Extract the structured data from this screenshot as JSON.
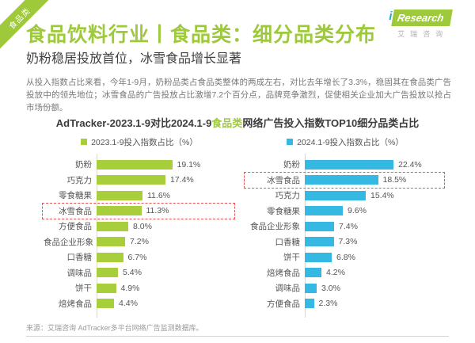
{
  "theme": {
    "brand_green": "#9dc93a",
    "bar_green": "#a8ce3b",
    "bar_blue": "#35b8e1",
    "highlight_red": "#e95454"
  },
  "ribbon": {
    "label": "食品类"
  },
  "header": {
    "title": "食品饮料行业丨食品类：细分品类分布",
    "subtitle": "奶粉稳居投放首位，冰雪食品增长显著",
    "logo": {
      "i": "i",
      "brand": "Research",
      "company": "艾瑞咨询"
    }
  },
  "intro": "从投入指数占比来看，今年1-9月，奶粉品类占食品类整体的两成左右，对比去年增长了3.3%，稳固其在食品类广告投放中的领先地位；冰雪食品的广告投放占比激增7.2个百分点，品牌竞争激烈，促使相关企业加大广告投放以抢占市场份额。",
  "chart_data": {
    "type": "bar",
    "orientation": "horizontal",
    "title_parts": {
      "prefix": "AdTracker-2023.1-9对比2024.1-9",
      "accent": "食品类",
      "suffix": "网络广告投入指数TOP10细分品类占比"
    },
    "xlim": [
      0,
      24
    ],
    "value_unit": "%",
    "grid": false,
    "legend_position": "top",
    "highlight_color": "#e95454",
    "panels": [
      {
        "legend": "2023.1-9投入指数占比（%）",
        "color": "#a8ce3b",
        "categories": [
          "奶粉",
          "巧克力",
          "零食糖果",
          "冰雪食品",
          "方便食品",
          "食品企业形象",
          "口香糖",
          "调味品",
          "饼干",
          "焙烤食品"
        ],
        "values": [
          19.1,
          17.4,
          11.6,
          11.3,
          8.0,
          7.2,
          6.7,
          5.4,
          4.9,
          4.4
        ],
        "highlight": "冰雪食品"
      },
      {
        "legend": "2024.1-9投入指数占比（%）",
        "color": "#35b8e1",
        "categories": [
          "奶粉",
          "冰雪食品",
          "巧克力",
          "零食糖果",
          "食品企业形象",
          "口香糖",
          "饼干",
          "焙烤食品",
          "调味品",
          "方便食品"
        ],
        "values": [
          22.4,
          18.5,
          15.4,
          9.6,
          7.4,
          7.3,
          6.8,
          4.2,
          3.0,
          2.3
        ],
        "highlight": "冰雪食品"
      }
    ]
  },
  "footer": {
    "source": "来源：艾瑞咨询 AdTracker多平台网络广告监测数据库。"
  }
}
